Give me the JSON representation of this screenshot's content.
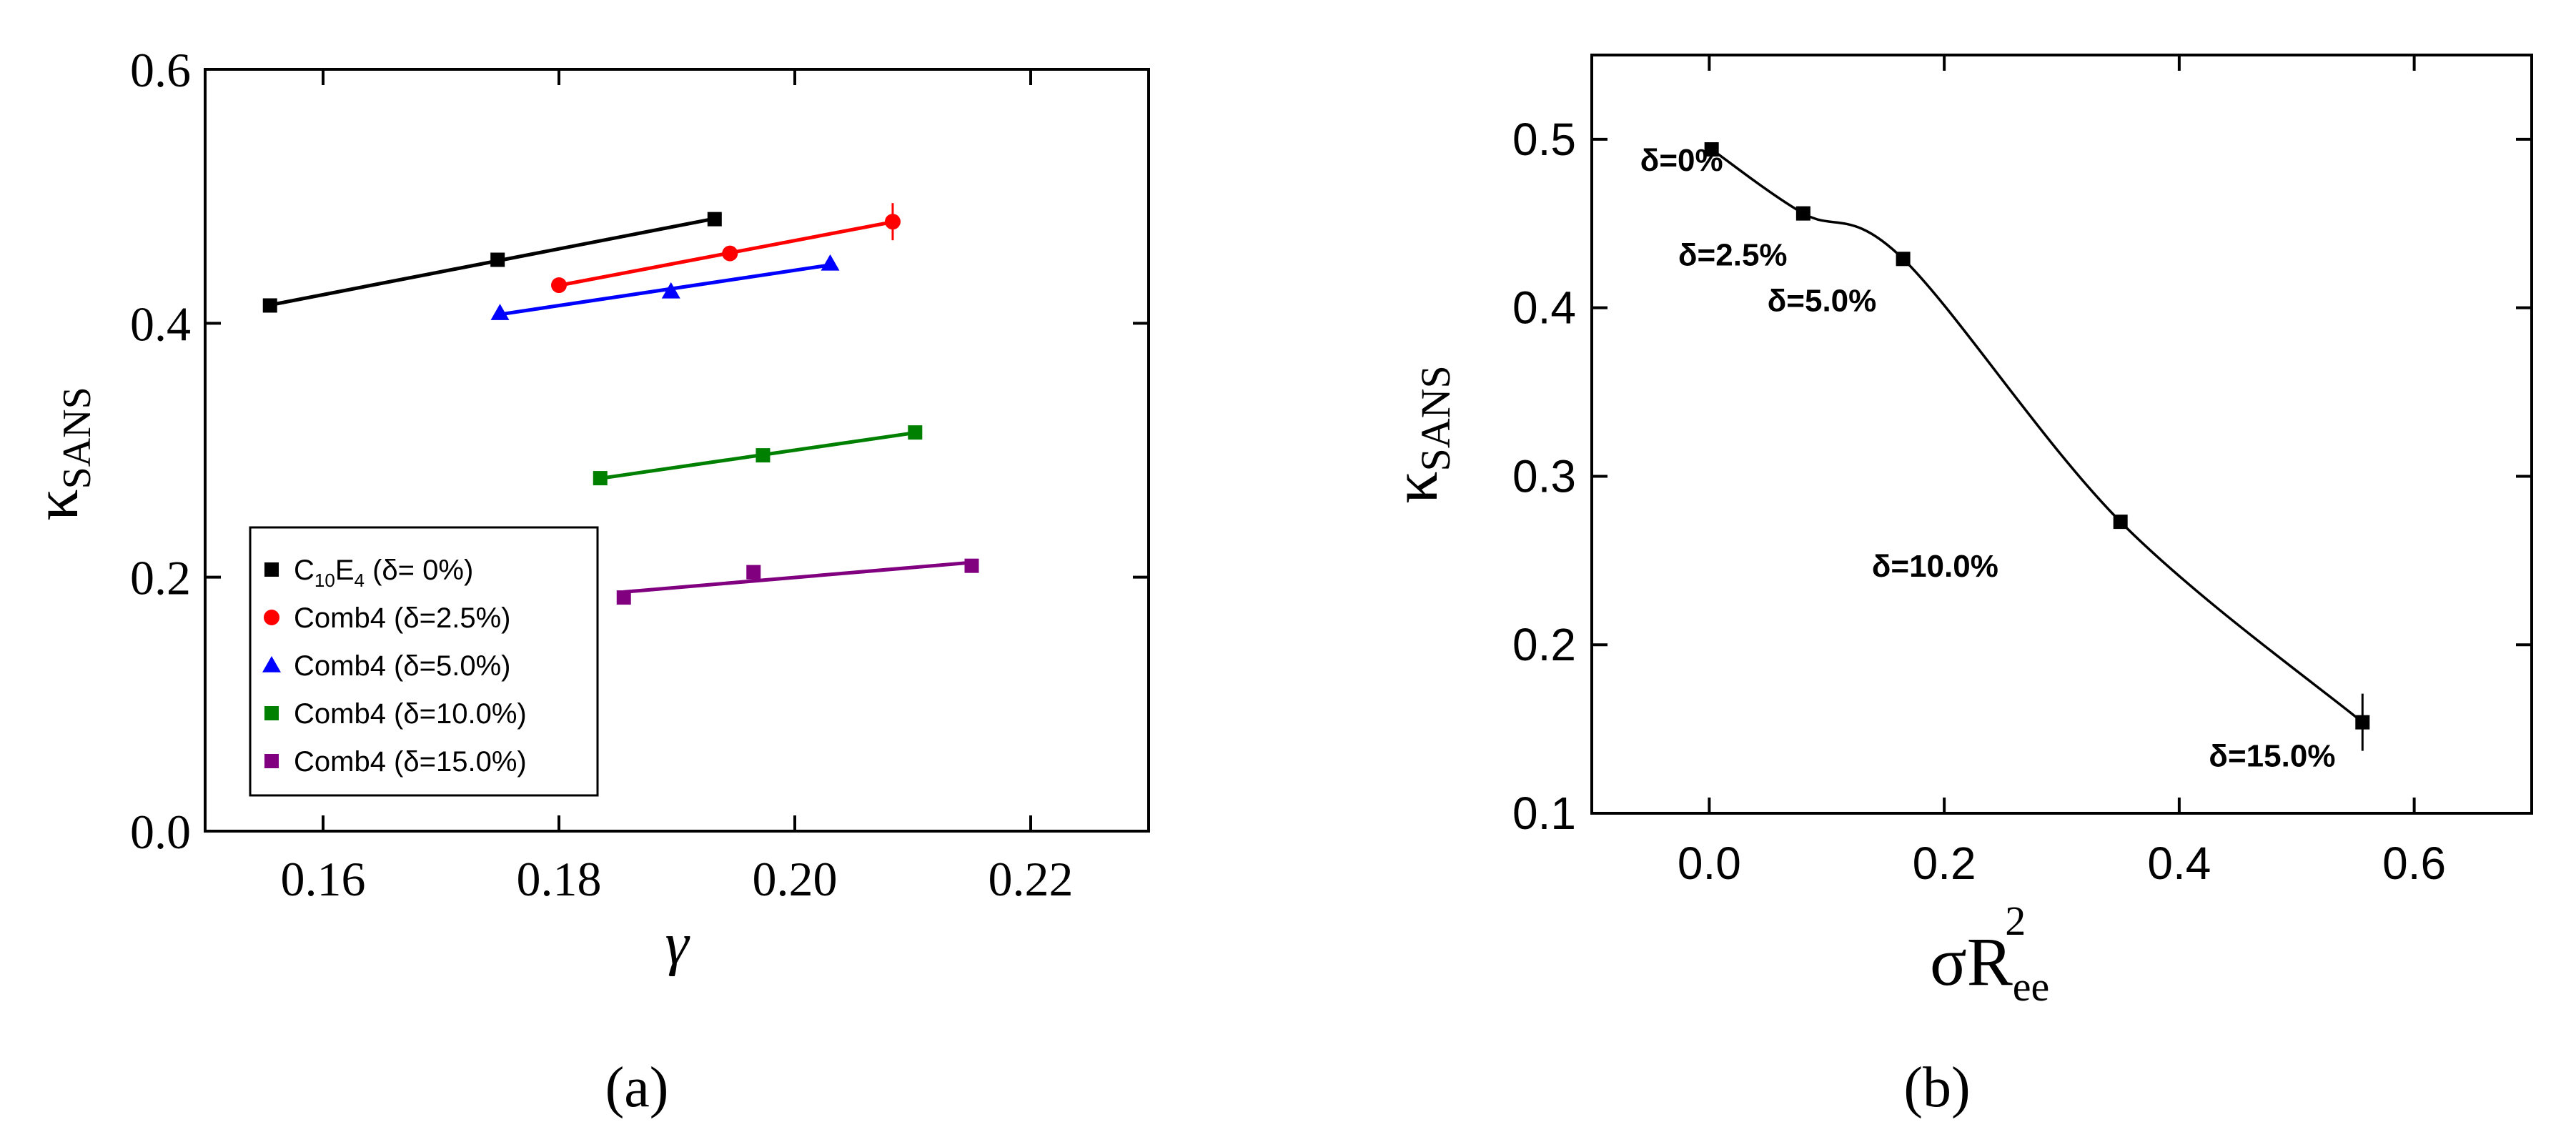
{
  "chart_data": [
    {
      "id": "a",
      "type": "scatter",
      "panel_label": "(a)",
      "title": "",
      "xlabel": "γ",
      "ylabel": {
        "main": "κ",
        "sub": "SANS"
      },
      "xlim": [
        0.15,
        0.23
      ],
      "ylim": [
        0.0,
        0.6
      ],
      "xticks": [
        0.16,
        0.18,
        0.2,
        0.22
      ],
      "xtick_labels": [
        "0.16",
        "0.18",
        "0.20",
        "0.22"
      ],
      "yticks": [
        0.0,
        0.2,
        0.4,
        0.6
      ],
      "ytick_labels": [
        "0.0",
        "0.2",
        "0.4",
        "0.6"
      ],
      "grid": false,
      "legend_position": "bottom-left",
      "series": [
        {
          "name": "C10E4 (δ= 0%)",
          "legend": {
            "pre": "C",
            "sub1": "10",
            "mid": "E",
            "sub2": "4",
            "post": " (δ= 0%)"
          },
          "color": "#000000",
          "marker": "square",
          "x": [
            0.1555,
            0.1748,
            0.1932
          ],
          "y": [
            0.414,
            0.45,
            0.482
          ]
        },
        {
          "name": "Comb4 (δ=2.5%)",
          "legend": {
            "pre": "Comb4 (δ=2.5%)"
          },
          "color": "#ff0000",
          "marker": "circle",
          "x": [
            0.18,
            0.1945,
            0.2083
          ],
          "y": [
            0.43,
            0.455,
            0.48
          ]
        },
        {
          "name": "Comb4 (δ=5.0%)",
          "legend": {
            "pre": "Comb4 (δ=5.0%)"
          },
          "color": "#0000ff",
          "marker": "triangle",
          "x": [
            0.175,
            0.1895,
            0.203
          ],
          "y": [
            0.408,
            0.425,
            0.447
          ]
        },
        {
          "name": "Comb4 (δ=10.0%)",
          "legend": {
            "pre": "Comb4 (δ=10.0%)"
          },
          "color": "#008000",
          "marker": "square",
          "x": [
            0.1835,
            0.1973,
            0.2102
          ],
          "y": [
            0.278,
            0.296,
            0.314
          ]
        },
        {
          "name": "Comb4 (δ=15.0%)",
          "legend": {
            "pre": "Comb4 (δ=15.0%)"
          },
          "color": "#800080",
          "marker": "square",
          "x": [
            0.1855,
            0.1965,
            0.215
          ],
          "y": [
            0.184,
            0.204,
            0.209
          ]
        }
      ]
    },
    {
      "id": "b",
      "type": "line",
      "panel_label": "(b)",
      "title": "",
      "xlabel": {
        "main": "σR",
        "sub": "ee",
        "sup": "2"
      },
      "ylabel": {
        "main": "κ",
        "sub": "SANS"
      },
      "xlim": [
        -0.1,
        0.7
      ],
      "ylim": [
        0.1,
        0.55
      ],
      "xticks": [
        0.0,
        0.2,
        0.4,
        0.6
      ],
      "xtick_labels": [
        "0.0",
        "0.2",
        "0.4",
        "0.6"
      ],
      "yticks": [
        0.1,
        0.2,
        0.3,
        0.4,
        0.5
      ],
      "ytick_labels": [
        "0.1",
        "0.2",
        "0.3",
        "0.4",
        "0.5"
      ],
      "grid": false,
      "points": [
        {
          "x": 0.002,
          "y": 0.494,
          "label": "δ=0%"
        },
        {
          "x": 0.08,
          "y": 0.456,
          "label": "δ=2.5%"
        },
        {
          "x": 0.165,
          "y": 0.429,
          "label": "δ=5.0%"
        },
        {
          "x": 0.35,
          "y": 0.273,
          "label": "δ=10.0%"
        },
        {
          "x": 0.556,
          "y": 0.154,
          "label": "δ=15.0%"
        }
      ],
      "color": "#000000",
      "marker": "square"
    }
  ]
}
